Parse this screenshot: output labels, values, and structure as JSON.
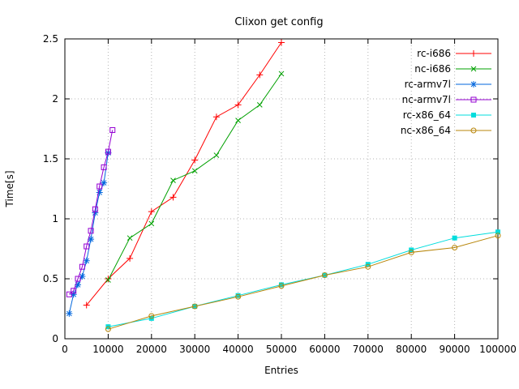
{
  "chart_data": {
    "type": "line",
    "title": "Clixon get config",
    "xlabel": "Entries",
    "ylabel": "Time[s]",
    "xlim": [
      0,
      100000
    ],
    "ylim": [
      0,
      2.5
    ],
    "xticks": [
      0,
      10000,
      20000,
      30000,
      40000,
      50000,
      60000,
      70000,
      80000,
      90000,
      100000
    ],
    "yticks": [
      0,
      0.5,
      1,
      1.5,
      2,
      2.5
    ],
    "grid": true,
    "grid_color": "#b4b4b4",
    "legend_position": "top-right",
    "series": [
      {
        "name": "rc-i686",
        "color": "#ff0000",
        "marker": "plus",
        "points": [
          [
            5000,
            0.28
          ],
          [
            10000,
            0.5
          ],
          [
            15000,
            0.67
          ],
          [
            20000,
            1.06
          ],
          [
            25000,
            1.18
          ],
          [
            30000,
            1.49
          ],
          [
            35000,
            1.85
          ],
          [
            40000,
            1.95
          ],
          [
            45000,
            2.2
          ],
          [
            50000,
            2.47
          ]
        ]
      },
      {
        "name": "nc-i686",
        "color": "#00a000",
        "marker": "cross",
        "points": [
          [
            10000,
            0.49
          ],
          [
            15000,
            0.84
          ],
          [
            20000,
            0.96
          ],
          [
            25000,
            1.32
          ],
          [
            30000,
            1.4
          ],
          [
            35000,
            1.53
          ],
          [
            40000,
            1.82
          ],
          [
            45000,
            1.95
          ],
          [
            50000,
            2.21
          ]
        ]
      },
      {
        "name": "rc-armv7l",
        "color": "#0066dd",
        "marker": "asterisk",
        "points": [
          [
            1000,
            0.21
          ],
          [
            2000,
            0.37
          ],
          [
            3000,
            0.45
          ],
          [
            4000,
            0.52
          ],
          [
            5000,
            0.65
          ],
          [
            6000,
            0.83
          ],
          [
            7000,
            1.05
          ],
          [
            8000,
            1.22
          ],
          [
            9000,
            1.3
          ],
          [
            10000,
            1.55
          ]
        ]
      },
      {
        "name": "nc-armv7l",
        "color": "#9400d3",
        "marker": "square-open",
        "points": [
          [
            1000,
            0.37
          ],
          [
            2000,
            0.4
          ],
          [
            3000,
            0.5
          ],
          [
            4000,
            0.6
          ],
          [
            5000,
            0.77
          ],
          [
            6000,
            0.9
          ],
          [
            7000,
            1.08
          ],
          [
            8000,
            1.27
          ],
          [
            9000,
            1.43
          ],
          [
            10000,
            1.56
          ],
          [
            11000,
            1.74
          ]
        ]
      },
      {
        "name": "rc-x86_64",
        "color": "#00dddd",
        "marker": "square-filled",
        "points": [
          [
            10000,
            0.1
          ],
          [
            20000,
            0.17
          ],
          [
            30000,
            0.27
          ],
          [
            40000,
            0.36
          ],
          [
            50000,
            0.45
          ],
          [
            60000,
            0.53
          ],
          [
            70000,
            0.62
          ],
          [
            80000,
            0.74
          ],
          [
            90000,
            0.84
          ],
          [
            100000,
            0.89
          ]
        ]
      },
      {
        "name": "nc-x86_64",
        "color": "#b8860b",
        "marker": "circle-open",
        "points": [
          [
            10000,
            0.08
          ],
          [
            20000,
            0.19
          ],
          [
            30000,
            0.27
          ],
          [
            40000,
            0.35
          ],
          [
            50000,
            0.44
          ],
          [
            60000,
            0.53
          ],
          [
            70000,
            0.6
          ],
          [
            80000,
            0.72
          ],
          [
            90000,
            0.76
          ],
          [
            100000,
            0.86
          ]
        ]
      }
    ]
  }
}
